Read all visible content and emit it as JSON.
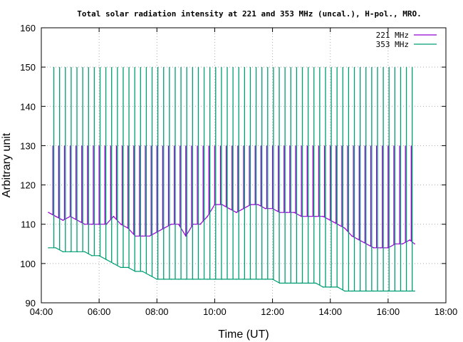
{
  "chart_data": {
    "type": "line",
    "title": "Total solar radiation intensity at 221 and 353 MHz (uncal.), H-pol., MRO.",
    "xlabel": "Time (UT)",
    "ylabel": "Arbitrary unit",
    "xlim": [
      "04:00",
      "18:00"
    ],
    "ylim": [
      90,
      160
    ],
    "xticks": [
      "04:00",
      "06:00",
      "08:00",
      "10:00",
      "12:00",
      "14:00",
      "16:00",
      "18:00"
    ],
    "yticks": [
      "90",
      "100",
      "110",
      "120",
      "130",
      "140",
      "150",
      "160"
    ],
    "grid": true,
    "legend_position": "top-right",
    "series": [
      {
        "name": "221 MHz",
        "color": "#9400d3",
        "x": [
          "04:15",
          "04:30",
          "04:45",
          "05:00",
          "05:15",
          "05:30",
          "05:45",
          "06:00",
          "06:15",
          "06:30",
          "06:45",
          "07:00",
          "07:15",
          "07:30",
          "07:45",
          "08:00",
          "08:15",
          "08:30",
          "08:45",
          "09:00",
          "09:15",
          "09:30",
          "09:45",
          "10:00",
          "10:15",
          "10:30",
          "10:45",
          "11:00",
          "11:15",
          "11:30",
          "11:45",
          "12:00",
          "12:15",
          "12:30",
          "12:45",
          "13:00",
          "13:15",
          "13:30",
          "13:45",
          "14:00",
          "14:15",
          "14:30",
          "14:45",
          "15:00",
          "15:15",
          "15:30",
          "15:45",
          "16:00",
          "16:15",
          "16:30",
          "16:45",
          "16:55"
        ],
        "values": [
          113,
          112,
          111,
          112,
          111,
          110,
          110,
          110,
          110,
          112,
          110,
          109,
          107,
          107,
          107,
          108,
          109,
          110,
          110,
          107,
          110,
          110,
          112,
          115,
          115,
          114,
          113,
          114,
          115,
          115,
          114,
          114,
          113,
          113,
          113,
          112,
          112,
          112,
          112,
          111,
          110,
          109,
          107,
          106,
          105,
          104,
          104,
          104,
          105,
          105,
          106,
          105
        ]
      },
      {
        "name": "353 MHz",
        "color": "#009e73",
        "x": [
          "04:15",
          "04:30",
          "04:45",
          "05:00",
          "05:15",
          "05:30",
          "05:45",
          "06:00",
          "06:15",
          "06:30",
          "06:45",
          "07:00",
          "07:15",
          "07:30",
          "07:45",
          "08:00",
          "08:15",
          "08:30",
          "08:45",
          "09:00",
          "09:15",
          "09:30",
          "09:45",
          "10:00",
          "10:15",
          "10:30",
          "10:45",
          "11:00",
          "11:15",
          "11:30",
          "11:45",
          "12:00",
          "12:15",
          "12:30",
          "12:45",
          "13:00",
          "13:15",
          "13:30",
          "13:45",
          "14:00",
          "14:15",
          "14:30",
          "14:45",
          "15:00",
          "15:15",
          "15:30",
          "15:45",
          "16:00",
          "16:15",
          "16:30",
          "16:45",
          "16:55"
        ],
        "values": [
          104,
          104,
          103,
          103,
          103,
          103,
          102,
          102,
          101,
          100,
          99,
          99,
          98,
          98,
          97,
          96,
          96,
          96,
          96,
          96,
          96,
          96,
          96,
          96,
          96,
          96,
          96,
          96,
          96,
          96,
          96,
          96,
          95,
          95,
          95,
          95,
          95,
          95,
          94,
          94,
          94,
          93,
          93,
          93,
          93,
          93,
          93,
          93,
          93,
          93,
          93,
          93
        ]
      }
    ],
    "calibration_spikes": {
      "221 MHz": {
        "x": [
          "04:24",
          "04:36",
          "04:48",
          "05:00",
          "05:12",
          "05:24",
          "05:36",
          "05:48",
          "06:00",
          "06:12",
          "06:24",
          "06:36",
          "06:48",
          "07:00",
          "07:12",
          "07:24",
          "07:36",
          "07:48",
          "08:00",
          "08:12",
          "08:24",
          "08:36",
          "08:48",
          "09:00",
          "09:12",
          "09:24",
          "09:36",
          "09:48",
          "10:00",
          "10:12",
          "10:24",
          "10:36",
          "10:48",
          "11:00",
          "11:12",
          "11:24",
          "11:36",
          "11:48",
          "12:00",
          "12:12",
          "12:24",
          "12:36",
          "12:48",
          "13:00",
          "13:12",
          "13:24",
          "13:36",
          "13:48",
          "14:00",
          "14:12",
          "14:24",
          "14:36",
          "14:48",
          "15:00",
          "15:12",
          "15:24",
          "15:36",
          "15:48",
          "16:00",
          "16:12",
          "16:24",
          "16:36",
          "16:48"
        ],
        "peak": 130
      },
      "353 MHz": {
        "x": [
          "04:26",
          "04:38",
          "04:50",
          "05:02",
          "05:14",
          "05:26",
          "05:38",
          "05:50",
          "06:02",
          "06:14",
          "06:26",
          "06:38",
          "06:50",
          "07:02",
          "07:14",
          "07:26",
          "07:38",
          "07:50",
          "08:02",
          "08:14",
          "08:26",
          "08:38",
          "08:50",
          "09:02",
          "09:14",
          "09:26",
          "09:38",
          "09:50",
          "10:02",
          "10:14",
          "10:26",
          "10:38",
          "10:50",
          "11:02",
          "11:14",
          "11:26",
          "11:38",
          "11:50",
          "12:02",
          "12:14",
          "12:26",
          "12:38",
          "12:50",
          "13:02",
          "13:14",
          "13:26",
          "13:38",
          "13:50",
          "14:02",
          "14:14",
          "14:26",
          "14:38",
          "14:50",
          "15:02",
          "15:14",
          "15:26",
          "15:38",
          "15:50",
          "16:02",
          "16:14",
          "16:26",
          "16:38",
          "16:50"
        ],
        "peak": 150
      }
    }
  }
}
